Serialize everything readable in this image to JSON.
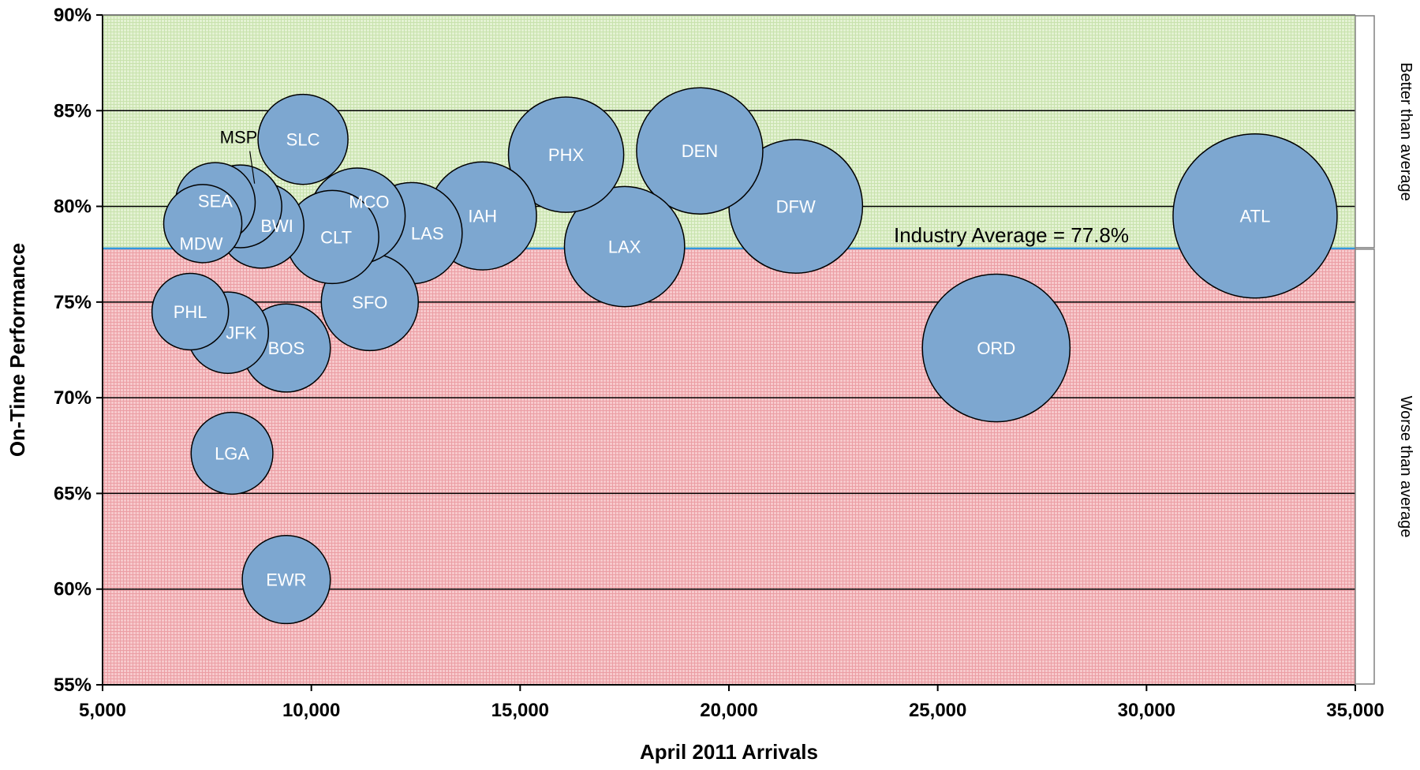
{
  "chart_data": {
    "type": "bubble",
    "xlabel": "April 2011 Arrivals",
    "ylabel": "On-Time Performance",
    "xlim": [
      5000,
      35000
    ],
    "ylim": [
      55,
      90
    ],
    "x_ticks": [
      5000,
      10000,
      15000,
      20000,
      25000,
      30000,
      35000
    ],
    "x_tick_labels": [
      "5,000",
      "10,000",
      "15,000",
      "20,000",
      "25,000",
      "30,000",
      "35,000"
    ],
    "y_ticks": [
      55,
      60,
      65,
      70,
      75,
      80,
      85,
      90
    ],
    "y_tick_labels": [
      "55%",
      "60%",
      "65%",
      "70%",
      "75%",
      "80%",
      "85%",
      "90%"
    ],
    "grid": "horizontal",
    "reference_line": {
      "value": 77.8,
      "label": "Industry Average = 77.8%",
      "color": "#3399dd"
    },
    "bands": [
      {
        "label": "Better than average",
        "from": 77.8,
        "to": 90,
        "color": "#dcefc8"
      },
      {
        "label": "Worse than average",
        "from": 55,
        "to": 77.8,
        "color": "#f4b8bc"
      }
    ],
    "bubble_color": "#7da7d0",
    "points": [
      {
        "label": "SLC",
        "x": 9800,
        "y": 83.5,
        "size": 9800
      },
      {
        "label": "MSP",
        "x": 8300,
        "y": 80.0,
        "size": 8300
      },
      {
        "label": "SEA",
        "x": 7700,
        "y": 80.2,
        "size": 7700
      },
      {
        "label": "MDW",
        "x": 7400,
        "y": 79.1,
        "size": 7400
      },
      {
        "label": "BWI",
        "x": 8800,
        "y": 79.0,
        "size": 8800
      },
      {
        "label": "MCO",
        "x": 11100,
        "y": 79.5,
        "size": 11100
      },
      {
        "label": "CLT",
        "x": 10500,
        "y": 78.4,
        "size": 10500
      },
      {
        "label": "LAS",
        "x": 12400,
        "y": 78.6,
        "size": 12400
      },
      {
        "label": "IAH",
        "x": 14100,
        "y": 79.5,
        "size": 14100
      },
      {
        "label": "PHX",
        "x": 16100,
        "y": 82.7,
        "size": 16100
      },
      {
        "label": "LAX",
        "x": 17500,
        "y": 77.9,
        "size": 17500
      },
      {
        "label": "DEN",
        "x": 19300,
        "y": 82.9,
        "size": 19300
      },
      {
        "label": "DFW",
        "x": 21600,
        "y": 80.0,
        "size": 21600
      },
      {
        "label": "ATL",
        "x": 32600,
        "y": 79.5,
        "size": 32600
      },
      {
        "label": "SFO",
        "x": 11400,
        "y": 75.0,
        "size": 11400
      },
      {
        "label": "PHL",
        "x": 7100,
        "y": 74.5,
        "size": 7100
      },
      {
        "label": "JFK",
        "x": 8000,
        "y": 73.4,
        "size": 8000
      },
      {
        "label": "BOS",
        "x": 9400,
        "y": 72.6,
        "size": 9400
      },
      {
        "label": "ORD",
        "x": 26400,
        "y": 72.6,
        "size": 26400
      },
      {
        "label": "LGA",
        "x": 8100,
        "y": 67.1,
        "size": 8100
      },
      {
        "label": "EWR",
        "x": 9400,
        "y": 60.5,
        "size": 9400
      }
    ]
  }
}
